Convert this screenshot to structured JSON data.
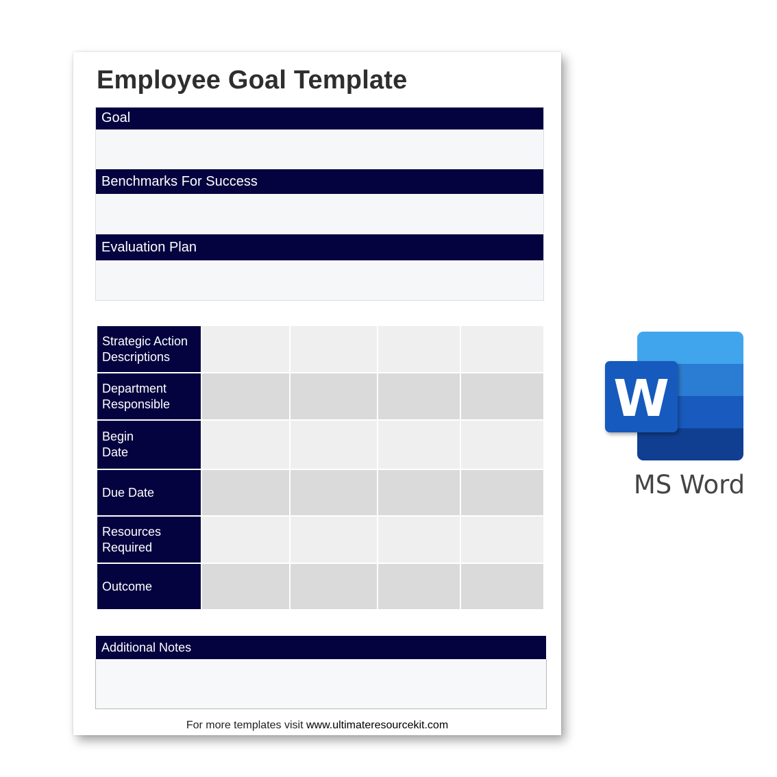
{
  "document": {
    "title": "Employee Goal Template",
    "sections": [
      {
        "label": "Goal"
      },
      {
        "label": "Benchmarks For Success"
      },
      {
        "label": "Evaluation Plan"
      }
    ],
    "action_table": {
      "rows": [
        {
          "label": "Strategic Action\nDescriptions"
        },
        {
          "label": "Department\nResponsible"
        },
        {
          "label": "Begin\nDate"
        },
        {
          "label": "Due Date"
        },
        {
          "label": "Resources\nRequired"
        },
        {
          "label": "Outcome"
        }
      ]
    },
    "notes": {
      "label": "Additional Notes"
    },
    "footer": {
      "prefix": "For more templates visit ",
      "url": "www.ultimateresourcekit.com"
    }
  },
  "app_badge": {
    "icon": "ms-word-icon",
    "letter": "W",
    "label": "MS Word",
    "colors": {
      "top": "#41a5ee",
      "mid1": "#2b7cd3",
      "mid2": "#185abd",
      "bottom": "#103f91",
      "tile": "#185abd"
    }
  }
}
